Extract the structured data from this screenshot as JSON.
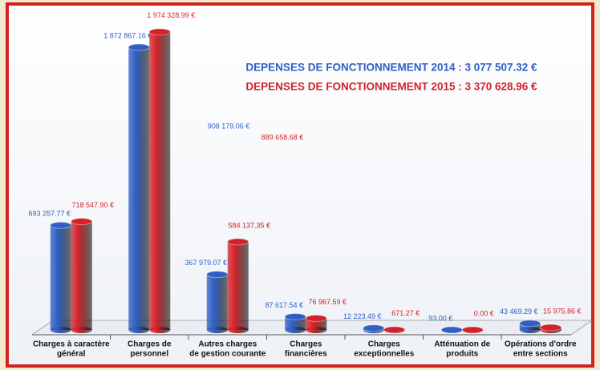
{
  "chart_data": {
    "type": "bar",
    "categories": [
      [
        "Charges à caractère",
        "général"
      ],
      [
        "Charges de",
        "personnel"
      ],
      [
        "Autres charges",
        "de gestion courante"
      ],
      [
        "Charges",
        "financières"
      ],
      [
        "Charges",
        "exceptionnelles"
      ],
      [
        "Atténuation de",
        "produits"
      ],
      [
        "Opérations d'ordre",
        "entre sections"
      ]
    ],
    "series": [
      {
        "name": "DEPENSES DE FONCTIONNEMENT 2014 : 3 077 507.32 €",
        "color": "#2f5fc4",
        "values": [
          693257.77,
          1872867.16,
          367979.07,
          87617.54,
          12223.49,
          93.0,
          43469.29
        ],
        "value_labels": [
          "693 257.77 €",
          "1 872 867.16 €",
          "367 979.07 €",
          "87 617.54 €",
          "12 223.49 €",
          "93.00 €",
          "43 469.29 €"
        ]
      },
      {
        "name": "DEPENSES DE FONCTIONNEMENT 2015 : 3 370 628.96 €",
        "color": "#d2232a",
        "values": [
          718547.9,
          1974328.99,
          584137.35,
          76967.59,
          671.27,
          0.0,
          15975.86
        ],
        "value_labels": [
          "718 547.90 €",
          "1 974 328.99 €",
          "584 137.35 €",
          "76 967.59 €",
          "671.27 €",
          "0.00 €",
          "15 975.86 €"
        ]
      }
    ],
    "annotations": [
      {
        "text": "908 179.06 €",
        "color": "#2f5fc4"
      },
      {
        "text": "889 658.68 €",
        "color": "#d2232a"
      }
    ]
  }
}
